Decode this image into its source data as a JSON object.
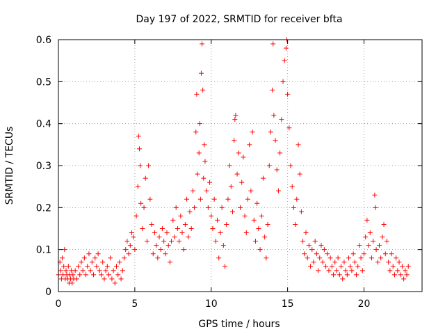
{
  "chart_data": {
    "type": "scatter",
    "title": "Day 197 of 2022, SRMTID for receiver bfta",
    "xlabel": "GPS time / hours",
    "ylabel": "SRMTID / TECUs",
    "xlim": [
      0,
      23.8
    ],
    "ylim": [
      0,
      0.6
    ],
    "xticks": [
      0,
      5,
      10,
      15,
      20
    ],
    "xtick_labels": [
      "0",
      "5",
      "10",
      "15",
      "20"
    ],
    "yticks": [
      0,
      0.1,
      0.2,
      0.3,
      0.4,
      0.5,
      0.6
    ],
    "ytick_labels": [
      "0",
      "0.1",
      "0.2",
      "0.3",
      "0.4",
      "0.5",
      "0.6"
    ],
    "grid": true,
    "marker": "+",
    "series": [
      {
        "name": "SRMTID",
        "color": "#ff0000",
        "points": [
          [
            0.0,
            0.04
          ],
          [
            0.1,
            0.07
          ],
          [
            0.15,
            0.05
          ],
          [
            0.2,
            0.03
          ],
          [
            0.25,
            0.08
          ],
          [
            0.3,
            0.04
          ],
          [
            0.35,
            0.06
          ],
          [
            0.4,
            0.1
          ],
          [
            0.45,
            0.03
          ],
          [
            0.5,
            0.05
          ],
          [
            0.55,
            0.04
          ],
          [
            0.6,
            0.03
          ],
          [
            0.65,
            0.06
          ],
          [
            0.7,
            0.02
          ],
          [
            0.75,
            0.04
          ],
          [
            0.8,
            0.03
          ],
          [
            0.85,
            0.05
          ],
          [
            0.9,
            0.02
          ],
          [
            0.95,
            0.04
          ],
          [
            1.0,
            0.03
          ],
          [
            1.1,
            0.05
          ],
          [
            1.2,
            0.03
          ],
          [
            1.3,
            0.06
          ],
          [
            1.4,
            0.04
          ],
          [
            1.5,
            0.07
          ],
          [
            1.6,
            0.05
          ],
          [
            1.7,
            0.08
          ],
          [
            1.8,
            0.04
          ],
          [
            1.9,
            0.06
          ],
          [
            2.0,
            0.09
          ],
          [
            2.1,
            0.05
          ],
          [
            2.2,
            0.07
          ],
          [
            2.3,
            0.04
          ],
          [
            2.4,
            0.08
          ],
          [
            2.5,
            0.06
          ],
          [
            2.6,
            0.09
          ],
          [
            2.7,
            0.05
          ],
          [
            2.8,
            0.04
          ],
          [
            2.9,
            0.07
          ],
          [
            3.0,
            0.03
          ],
          [
            3.1,
            0.05
          ],
          [
            3.2,
            0.06
          ],
          [
            3.3,
            0.04
          ],
          [
            3.4,
            0.08
          ],
          [
            3.5,
            0.03
          ],
          [
            3.6,
            0.05
          ],
          [
            3.7,
            0.02
          ],
          [
            3.8,
            0.06
          ],
          [
            3.9,
            0.04
          ],
          [
            4.0,
            0.07
          ],
          [
            4.1,
            0.03
          ],
          [
            4.2,
            0.05
          ],
          [
            4.3,
            0.08
          ],
          [
            4.4,
            0.1
          ],
          [
            4.5,
            0.12
          ],
          [
            4.6,
            0.09
          ],
          [
            4.7,
            0.11
          ],
          [
            4.8,
            0.14
          ],
          [
            4.9,
            0.13
          ],
          [
            5.0,
            0.1
          ],
          [
            5.1,
            0.18
          ],
          [
            5.2,
            0.25
          ],
          [
            5.25,
            0.37
          ],
          [
            5.3,
            0.34
          ],
          [
            5.35,
            0.3
          ],
          [
            5.4,
            0.21
          ],
          [
            5.5,
            0.15
          ],
          [
            5.6,
            0.2
          ],
          [
            5.7,
            0.27
          ],
          [
            5.8,
            0.12
          ],
          [
            5.9,
            0.3
          ],
          [
            6.0,
            0.22
          ],
          [
            6.1,
            0.16
          ],
          [
            6.2,
            0.09
          ],
          [
            6.3,
            0.14
          ],
          [
            6.4,
            0.11
          ],
          [
            6.5,
            0.08
          ],
          [
            6.6,
            0.13
          ],
          [
            6.7,
            0.1
          ],
          [
            6.8,
            0.15
          ],
          [
            6.9,
            0.12
          ],
          [
            7.0,
            0.09
          ],
          [
            7.1,
            0.14
          ],
          [
            7.2,
            0.11
          ],
          [
            7.3,
            0.07
          ],
          [
            7.4,
            0.12
          ],
          [
            7.5,
            0.17
          ],
          [
            7.6,
            0.13
          ],
          [
            7.7,
            0.2
          ],
          [
            7.8,
            0.15
          ],
          [
            7.9,
            0.12
          ],
          [
            8.0,
            0.18
          ],
          [
            8.1,
            0.14
          ],
          [
            8.2,
            0.1
          ],
          [
            8.3,
            0.16
          ],
          [
            8.4,
            0.22
          ],
          [
            8.5,
            0.13
          ],
          [
            8.6,
            0.19
          ],
          [
            8.7,
            0.15
          ],
          [
            8.8,
            0.24
          ],
          [
            8.9,
            0.2
          ],
          [
            9.0,
            0.38
          ],
          [
            9.05,
            0.47
          ],
          [
            9.1,
            0.28
          ],
          [
            9.2,
            0.33
          ],
          [
            9.25,
            0.4
          ],
          [
            9.3,
            0.22
          ],
          [
            9.35,
            0.52
          ],
          [
            9.4,
            0.59
          ],
          [
            9.45,
            0.48
          ],
          [
            9.5,
            0.27
          ],
          [
            9.55,
            0.35
          ],
          [
            9.6,
            0.31
          ],
          [
            9.7,
            0.24
          ],
          [
            9.8,
            0.2
          ],
          [
            9.9,
            0.26
          ],
          [
            10.0,
            0.18
          ],
          [
            10.1,
            0.15
          ],
          [
            10.2,
            0.22
          ],
          [
            10.3,
            0.12
          ],
          [
            10.4,
            0.17
          ],
          [
            10.5,
            0.08
          ],
          [
            10.6,
            0.14
          ],
          [
            10.7,
            0.2
          ],
          [
            10.8,
            0.11
          ],
          [
            10.9,
            0.06
          ],
          [
            11.0,
            0.16
          ],
          [
            11.1,
            0.22
          ],
          [
            11.2,
            0.3
          ],
          [
            11.3,
            0.25
          ],
          [
            11.4,
            0.19
          ],
          [
            11.5,
            0.36
          ],
          [
            11.55,
            0.41
          ],
          [
            11.6,
            0.42
          ],
          [
            11.7,
            0.28
          ],
          [
            11.8,
            0.33
          ],
          [
            11.9,
            0.2
          ],
          [
            12.0,
            0.26
          ],
          [
            12.1,
            0.32
          ],
          [
            12.2,
            0.18
          ],
          [
            12.3,
            0.14
          ],
          [
            12.4,
            0.22
          ],
          [
            12.5,
            0.35
          ],
          [
            12.6,
            0.24
          ],
          [
            12.7,
            0.38
          ],
          [
            12.8,
            0.17
          ],
          [
            12.9,
            0.12
          ],
          [
            13.0,
            0.21
          ],
          [
            13.1,
            0.15
          ],
          [
            13.2,
            0.1
          ],
          [
            13.3,
            0.18
          ],
          [
            13.4,
            0.27
          ],
          [
            13.5,
            0.13
          ],
          [
            13.6,
            0.08
          ],
          [
            13.7,
            0.16
          ],
          [
            13.8,
            0.3
          ],
          [
            13.9,
            0.38
          ],
          [
            14.0,
            0.48
          ],
          [
            14.05,
            0.59
          ],
          [
            14.1,
            0.42
          ],
          [
            14.2,
            0.36
          ],
          [
            14.3,
            0.29
          ],
          [
            14.4,
            0.24
          ],
          [
            14.5,
            0.33
          ],
          [
            14.6,
            0.41
          ],
          [
            14.7,
            0.5
          ],
          [
            14.8,
            0.55
          ],
          [
            14.9,
            0.58
          ],
          [
            14.95,
            0.6
          ],
          [
            15.0,
            0.47
          ],
          [
            15.1,
            0.39
          ],
          [
            15.2,
            0.3
          ],
          [
            15.3,
            0.25
          ],
          [
            15.4,
            0.2
          ],
          [
            15.5,
            0.16
          ],
          [
            15.6,
            0.22
          ],
          [
            15.7,
            0.35
          ],
          [
            15.8,
            0.28
          ],
          [
            15.9,
            0.19
          ],
          [
            16.0,
            0.12
          ],
          [
            16.1,
            0.09
          ],
          [
            16.2,
            0.14
          ],
          [
            16.3,
            0.08
          ],
          [
            16.4,
            0.11
          ],
          [
            16.5,
            0.06
          ],
          [
            16.6,
            0.1
          ],
          [
            16.7,
            0.07
          ],
          [
            16.8,
            0.12
          ],
          [
            16.9,
            0.09
          ],
          [
            17.0,
            0.05
          ],
          [
            17.1,
            0.08
          ],
          [
            17.2,
            0.11
          ],
          [
            17.3,
            0.07
          ],
          [
            17.4,
            0.1
          ],
          [
            17.5,
            0.06
          ],
          [
            17.6,
            0.09
          ],
          [
            17.7,
            0.05
          ],
          [
            17.8,
            0.08
          ],
          [
            17.9,
            0.06
          ],
          [
            18.0,
            0.04
          ],
          [
            18.1,
            0.07
          ],
          [
            18.2,
            0.05
          ],
          [
            18.3,
            0.08
          ],
          [
            18.4,
            0.04
          ],
          [
            18.5,
            0.06
          ],
          [
            18.6,
            0.03
          ],
          [
            18.7,
            0.07
          ],
          [
            18.8,
            0.05
          ],
          [
            18.9,
            0.04
          ],
          [
            19.0,
            0.08
          ],
          [
            19.1,
            0.06
          ],
          [
            19.2,
            0.05
          ],
          [
            19.3,
            0.09
          ],
          [
            19.4,
            0.07
          ],
          [
            19.5,
            0.04
          ],
          [
            19.6,
            0.06
          ],
          [
            19.7,
            0.11
          ],
          [
            19.8,
            0.08
          ],
          [
            19.9,
            0.05
          ],
          [
            20.0,
            0.09
          ],
          [
            20.1,
            0.13
          ],
          [
            20.2,
            0.17
          ],
          [
            20.3,
            0.11
          ],
          [
            20.4,
            0.14
          ],
          [
            20.5,
            0.08
          ],
          [
            20.6,
            0.12
          ],
          [
            20.7,
            0.23
          ],
          [
            20.75,
            0.2
          ],
          [
            20.8,
            0.1
          ],
          [
            20.9,
            0.07
          ],
          [
            21.0,
            0.11
          ],
          [
            21.1,
            0.08
          ],
          [
            21.2,
            0.13
          ],
          [
            21.3,
            0.16
          ],
          [
            21.4,
            0.09
          ],
          [
            21.5,
            0.12
          ],
          [
            21.6,
            0.07
          ],
          [
            21.7,
            0.05
          ],
          [
            21.8,
            0.09
          ],
          [
            21.9,
            0.06
          ],
          [
            22.0,
            0.04
          ],
          [
            22.1,
            0.08
          ],
          [
            22.2,
            0.05
          ],
          [
            22.3,
            0.07
          ],
          [
            22.4,
            0.04
          ],
          [
            22.5,
            0.06
          ],
          [
            22.6,
            0.03
          ],
          [
            22.7,
            0.05
          ],
          [
            22.8,
            0.04
          ],
          [
            22.9,
            0.06
          ]
        ]
      }
    ]
  }
}
